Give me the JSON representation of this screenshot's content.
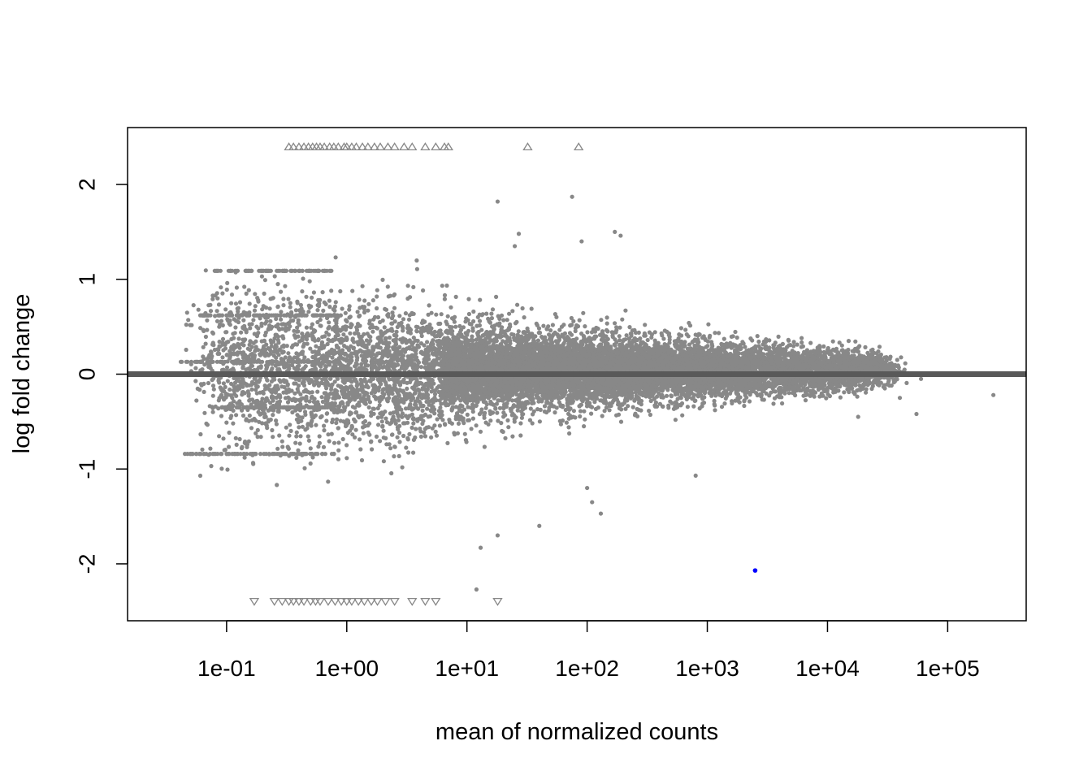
{
  "chart_data": {
    "type": "scatter",
    "title": "",
    "xlabel": "mean of normalized counts",
    "ylabel": "log fold change",
    "x_scale": "log10",
    "xlim": [
      0.015,
      450000
    ],
    "ylim": [
      -2.6,
      2.6
    ],
    "grid": false,
    "x_ticks": [
      {
        "value": 0.1,
        "label": "1e-01"
      },
      {
        "value": 1,
        "label": "1e+00"
      },
      {
        "value": 10,
        "label": "1e+01"
      },
      {
        "value": 100,
        "label": "1e+02"
      },
      {
        "value": 1000,
        "label": "1e+03"
      },
      {
        "value": 10000,
        "label": "1e+04"
      },
      {
        "value": 100000,
        "label": "1e+05"
      }
    ],
    "y_ticks": [
      {
        "value": -2,
        "label": "-2"
      },
      {
        "value": -1,
        "label": "-1"
      },
      {
        "value": 0,
        "label": "0"
      },
      {
        "value": 1,
        "label": "1"
      },
      {
        "value": 2,
        "label": "2"
      }
    ],
    "reference_line": {
      "y": 0,
      "color": "#595959"
    },
    "colors": {
      "point": "#888888",
      "significant": "#0000ff",
      "outlier": "#888888"
    },
    "series": [
      {
        "kind": "significant",
        "points": [
          [
            2500,
            -2.07
          ]
        ]
      },
      {
        "kind": "clipped-high",
        "y": 2.4,
        "x": [
          0.33,
          0.36,
          0.4,
          0.44,
          0.48,
          0.52,
          0.56,
          0.6,
          0.65,
          0.72,
          0.78,
          0.85,
          0.95,
          1.0,
          1.1,
          1.2,
          1.35,
          1.5,
          1.7,
          1.9,
          2.2,
          2.5,
          3.0,
          3.5,
          4.5,
          5.5,
          6.5,
          7.0,
          32,
          85
        ]
      },
      {
        "kind": "clipped-low",
        "y": -2.4,
        "x": [
          0.17,
          0.25,
          0.29,
          0.33,
          0.36,
          0.4,
          0.44,
          0.5,
          0.55,
          0.6,
          0.7,
          0.8,
          0.9,
          1.0,
          1.1,
          1.25,
          1.4,
          1.6,
          1.8,
          2.1,
          2.5,
          3.5,
          4.5,
          5.5,
          18
        ]
      },
      {
        "kind": "highlighted-genes",
        "points": [
          [
            240000,
            -0.22
          ],
          [
            60000,
            -0.05
          ],
          [
            55000,
            -0.42
          ],
          [
            40000,
            -0.25
          ],
          [
            30000,
            -0.15
          ],
          [
            20000,
            0.12
          ],
          [
            18000,
            -0.45
          ],
          [
            15000,
            0.35
          ],
          [
            800,
            -1.07
          ],
          [
            100,
            -1.2
          ],
          [
            110,
            -1.35
          ],
          [
            130,
            -1.47
          ],
          [
            75,
            1.87
          ],
          [
            90,
            1.4
          ],
          [
            170,
            1.5
          ],
          [
            190,
            1.46
          ],
          [
            18,
            1.82
          ],
          [
            40,
            -1.6
          ],
          [
            27,
            1.48
          ],
          [
            12,
            -2.27
          ],
          [
            13,
            -1.83
          ],
          [
            18,
            -1.7
          ],
          [
            25,
            1.35
          ]
        ]
      }
    ]
  }
}
